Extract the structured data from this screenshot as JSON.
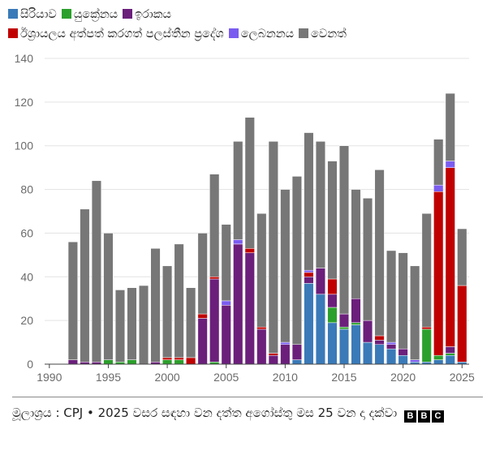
{
  "legend": [
    {
      "label": "සිරියාව",
      "color": "#3a7ab8"
    },
    {
      "label": "යුක්‍රේනය",
      "color": "#2ca02c"
    },
    {
      "label": "ඉරාකය",
      "color": "#6b1f7b"
    },
    {
      "label": "ඊශ්‍රායලය අත්පත් කරගත් පලස්තීන ප්‍රදේශ",
      "color": "#c00000"
    },
    {
      "label": "ලෙබනනය",
      "color": "#7b5cf0"
    },
    {
      "label": "වෙනත්",
      "color": "#777777"
    }
  ],
  "footer": {
    "source": "මූලාශ්‍රය : CPJ • 2025 වසර සඳහා වන දත්ත අගෝස්තු මස 25 වන දා දක්වා",
    "logo": [
      "B",
      "B",
      "C"
    ]
  },
  "chart_data": {
    "type": "bar",
    "stacked": true,
    "x": [
      1992,
      1993,
      1994,
      1995,
      1996,
      1997,
      1998,
      1999,
      2000,
      2001,
      2002,
      2003,
      2004,
      2005,
      2006,
      2007,
      2008,
      2009,
      2010,
      2011,
      2012,
      2013,
      2014,
      2015,
      2016,
      2017,
      2018,
      2019,
      2020,
      2021,
      2022,
      2023,
      2024,
      2025
    ],
    "xticks": [
      1990,
      1995,
      2000,
      2005,
      2010,
      2015,
      2020,
      2025
    ],
    "xlim": [
      1989.6,
      2025.6
    ],
    "yticks": [
      0,
      20,
      40,
      60,
      80,
      100,
      120,
      140
    ],
    "ylim": [
      0,
      140
    ],
    "grid": true,
    "legend_position": "top",
    "series": [
      {
        "name": "සිරියාව",
        "color": "#3a7ab8",
        "values": [
          0,
          0,
          0,
          0,
          0,
          0,
          0,
          0,
          0,
          0,
          0,
          0,
          0,
          0,
          0,
          0,
          0,
          0,
          0,
          2,
          37,
          32,
          19,
          16,
          18,
          10,
          9,
          7,
          4,
          1,
          1,
          2,
          4,
          1
        ]
      },
      {
        "name": "යුක්‍රේනය",
        "color": "#2ca02c",
        "values": [
          0,
          0,
          0,
          2,
          1,
          2,
          0,
          0,
          2,
          2,
          0,
          0,
          1,
          0,
          0,
          0,
          0,
          0,
          0,
          0,
          0,
          0,
          7,
          1,
          1,
          0,
          0,
          0,
          0,
          0,
          15,
          2,
          1,
          0
        ]
      },
      {
        "name": "ඉරාකය",
        "color": "#6b1f7b",
        "values": [
          2,
          1,
          1,
          0,
          0,
          0,
          0,
          1,
          0,
          0,
          0,
          21,
          38,
          27,
          55,
          51,
          16,
          4,
          9,
          7,
          3,
          12,
          6,
          6,
          11,
          10,
          2,
          2,
          3,
          0,
          0,
          0,
          3,
          0
        ]
      },
      {
        "name": "ඊශ්‍රායලය අත්පත් කරගත් පලස්තීන ප්‍රදේශ",
        "color": "#c00000",
        "values": [
          0,
          0,
          0,
          0,
          0,
          0,
          0,
          0,
          1,
          1,
          3,
          2,
          1,
          0,
          0,
          2,
          1,
          1,
          0,
          0,
          2,
          0,
          7,
          0,
          0,
          0,
          2,
          0,
          0,
          0,
          1,
          75,
          82,
          35
        ]
      },
      {
        "name": "ලෙබනනය",
        "color": "#7b5cf0",
        "values": [
          0,
          0,
          0,
          0,
          0,
          0,
          0,
          0,
          0,
          0,
          0,
          0,
          0,
          2,
          2,
          0,
          0,
          0,
          1,
          0,
          1,
          0,
          0,
          0,
          0,
          0,
          0,
          1,
          0,
          1,
          0,
          3,
          3,
          0
        ]
      },
      {
        "name": "වෙනත්",
        "color": "#777777",
        "values": [
          54,
          70,
          83,
          58,
          33,
          33,
          36,
          52,
          42,
          52,
          32,
          37,
          47,
          35,
          45,
          60,
          52,
          97,
          70,
          77,
          63,
          58,
          54,
          77,
          50,
          56,
          76,
          42,
          44,
          43,
          52,
          21,
          31,
          26
        ]
      }
    ]
  }
}
